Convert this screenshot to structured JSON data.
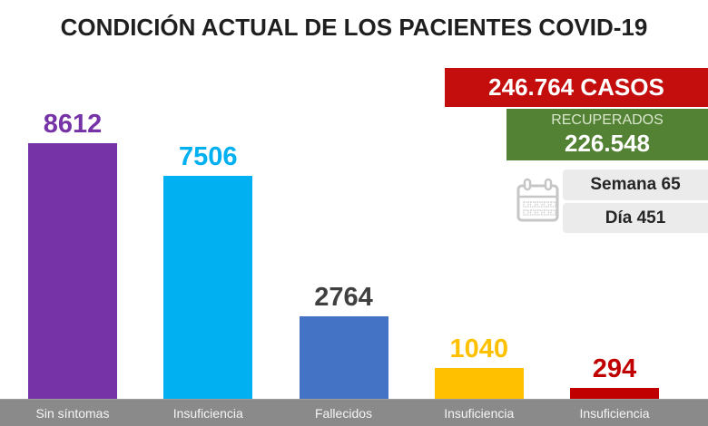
{
  "title": "CONDICIÓN ACTUAL DE LOS PACIENTES COVID-19",
  "chart_data": {
    "type": "bar",
    "title": "CONDICIÓN ACTUAL DE LOS PACIENTES COVID-19",
    "categories": [
      "Sin síntomas",
      "Insuficiencia",
      "Fallecidos",
      "Insuficiencia",
      "Insuficiencia"
    ],
    "values": [
      8612,
      7506,
      2764,
      1040,
      294
    ],
    "value_labels": [
      "8612",
      "7506",
      "2764",
      "1040",
      "294"
    ],
    "bar_colors": [
      "#7633A8",
      "#00B0F0",
      "#4472C4",
      "#FFC000",
      "#C00000"
    ],
    "value_label_colors": [
      "#7633A8",
      "#00B0F0",
      "#404040",
      "#FFC000",
      "#C00000"
    ],
    "xlabel": "",
    "ylabel": "",
    "ylim": [
      0,
      9000
    ],
    "gridlines": false,
    "legend": "none",
    "category_labels_position": "bottom-band"
  },
  "right_panel": {
    "cases_banner": {
      "text": "246.764 CASOS",
      "bg": "#C40E0E",
      "text_color": "#FFFFFF"
    },
    "recovered_banner": {
      "label": "RECUPERADOS",
      "value": "226.548",
      "bg": "#548235",
      "label_color": "#D9E7CD",
      "value_color": "#FFFFFF"
    },
    "week_row": {
      "text": "Semana 65",
      "bg": "#EBEBEB",
      "text_color": "#262626"
    },
    "day_row": {
      "text": "Día 451",
      "bg": "#EBEBEB",
      "text_color": "#262626"
    },
    "calendar_icon": "calendar-icon"
  },
  "footer": {
    "band_color": "#8A8A8A",
    "category_text_color": "#F5F5F5"
  }
}
